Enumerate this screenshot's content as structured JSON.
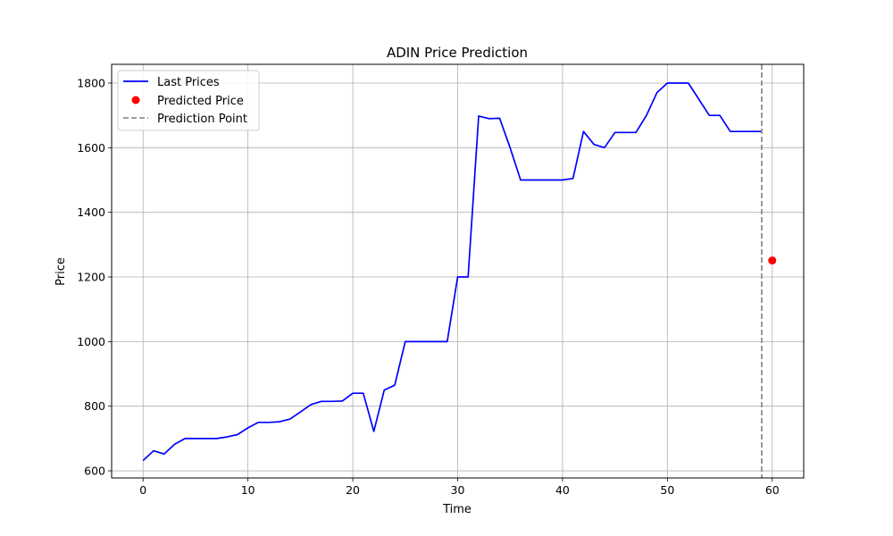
{
  "chart_data": {
    "type": "line",
    "title": "ADIN Price Prediction",
    "xlabel": "Time",
    "ylabel": "Price",
    "xlim": [
      -3,
      63
    ],
    "ylim": [
      578,
      1858
    ],
    "xticks": [
      0,
      10,
      20,
      30,
      40,
      50,
      60
    ],
    "yticks": [
      600,
      800,
      1000,
      1200,
      1400,
      1600,
      1800
    ],
    "grid": true,
    "legend_position": "top-left",
    "series": [
      {
        "name": "Last Prices",
        "kind": "line",
        "color": "#0000ff",
        "x": [
          0,
          1,
          2,
          3,
          4,
          5,
          6,
          7,
          8,
          9,
          10,
          11,
          12,
          13,
          14,
          15,
          16,
          17,
          18,
          19,
          20,
          21,
          22,
          23,
          24,
          25,
          26,
          27,
          28,
          29,
          30,
          31,
          32,
          33,
          34,
          35,
          36,
          37,
          38,
          39,
          40,
          41,
          42,
          43,
          44,
          45,
          46,
          47,
          48,
          49,
          50,
          51,
          52,
          53,
          54,
          55,
          56,
          57,
          58,
          59
        ],
        "y": [
          632,
          662,
          652,
          682,
          700,
          700,
          700,
          700,
          705,
          712,
          733,
          750,
          750,
          752,
          760,
          782,
          805,
          815,
          815,
          816,
          840,
          840,
          722,
          850,
          865,
          1000,
          1000,
          1000,
          1000,
          1000,
          1200,
          1200,
          1698,
          1690,
          1691,
          1600,
          1500,
          1500,
          1500,
          1500,
          1500,
          1505,
          1650,
          1610,
          1600,
          1647,
          1647,
          1647,
          1700,
          1770,
          1800,
          1800,
          1800,
          1750,
          1700,
          1700,
          1650,
          1650,
          1650,
          1650
        ]
      },
      {
        "name": "Predicted Price",
        "kind": "scatter",
        "color": "#ff0000",
        "x": [
          60
        ],
        "y": [
          1251
        ]
      },
      {
        "name": "Prediction Point",
        "kind": "vline",
        "color": "#808080",
        "x": 59
      }
    ]
  }
}
